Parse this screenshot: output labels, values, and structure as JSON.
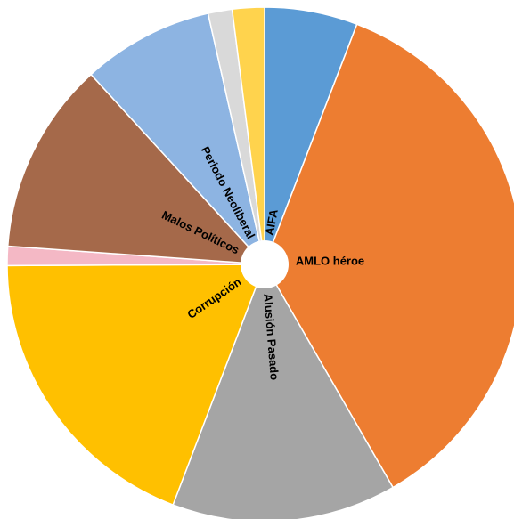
{
  "chart_data": {
    "type": "pie",
    "title": "",
    "start_angle_deg": 0,
    "direction": "clockwise",
    "slice_border_color": "#ffffff",
    "center_hole_color": "#ffffff",
    "slices": [
      {
        "label": "AIFA",
        "value": 5.8,
        "color": "#5b9bd5",
        "label_orientation": "radial"
      },
      {
        "label": "AMLO héroe",
        "value": 35.6,
        "color": "#ed7d31",
        "label_orientation": "horizontal"
      },
      {
        "label": "Alusión Pasado",
        "value": 14.0,
        "color": "#a5a5a5",
        "label_orientation": "radial"
      },
      {
        "label": "Corrupción",
        "value": 19.0,
        "color": "#ffc000",
        "label_orientation": "radial"
      },
      {
        "label": "",
        "value": 1.2,
        "color": "#f4b8c5",
        "label_orientation": "none"
      },
      {
        "label": "Malos Políticos",
        "value": 12.0,
        "color": "#a5694a",
        "label_orientation": "radial"
      },
      {
        "label": "Periodo Neoliberal",
        "value": 8.2,
        "color": "#8db4e2",
        "label_orientation": "radial"
      },
      {
        "label": "",
        "value": 1.5,
        "color": "#d9d9d9",
        "label_orientation": "none"
      },
      {
        "label": "",
        "value": 2.0,
        "color": "#ffd34d",
        "label_orientation": "none"
      }
    ]
  }
}
